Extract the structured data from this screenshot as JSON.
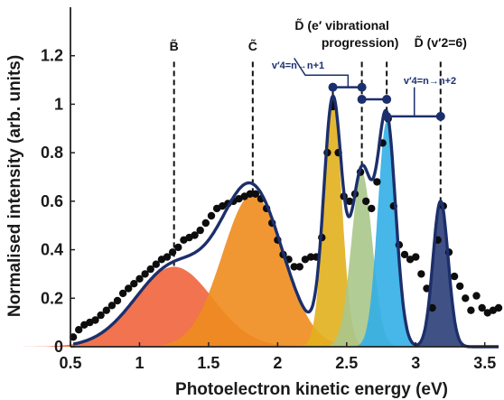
{
  "chart_data": {
    "type": "line",
    "xlabel": "Photoelectron kinetic energy (eV)",
    "ylabel": "Normalised intensity (arb. units)",
    "xlim": [
      0.5,
      3.6
    ],
    "ylim": [
      0,
      1.4
    ],
    "x_ticks": [
      0.5,
      1,
      1.5,
      2,
      2.5,
      3,
      3.5
    ],
    "x_tick_labels": [
      "0.5",
      "1",
      "1.5",
      "2",
      "2.5",
      "3",
      "3.5"
    ],
    "y_ticks": [
      0,
      0.2,
      0.4,
      0.6,
      0.8,
      1,
      1.2
    ],
    "y_tick_labels": [
      "0",
      "0.2",
      "0.4",
      "0.6",
      "0.8",
      "1",
      "1.2"
    ],
    "grid": false,
    "bands": [
      {
        "center": 1.25,
        "amplitude": 0.33,
        "width": 0.28,
        "color": "#f0643c"
      },
      {
        "center": 1.82,
        "amplitude": 0.63,
        "width": 0.22,
        "color": "#ee8c1e"
      },
      {
        "center": 2.4,
        "amplitude": 1.0,
        "width": 0.065,
        "color": "#e2b01e"
      },
      {
        "center": 2.61,
        "amplitude": 0.72,
        "width": 0.075,
        "color": "#a9c68a"
      },
      {
        "center": 2.79,
        "amplitude": 0.93,
        "width": 0.065,
        "color": "#33aee6"
      },
      {
        "center": 3.18,
        "amplitude": 0.6,
        "width": 0.055,
        "color": "#2b3f78"
      }
    ],
    "fit_color": "#1c2f6b",
    "data_points": {
      "x": [
        0.52,
        0.56,
        0.6,
        0.64,
        0.68,
        0.72,
        0.76,
        0.8,
        0.84,
        0.88,
        0.92,
        0.96,
        1.0,
        1.04,
        1.08,
        1.12,
        1.16,
        1.2,
        1.24,
        1.28,
        1.32,
        1.36,
        1.4,
        1.44,
        1.48,
        1.52,
        1.56,
        1.6,
        1.64,
        1.68,
        1.72,
        1.76,
        1.8,
        1.84,
        1.88,
        1.92,
        1.96,
        2.0,
        2.04,
        2.08,
        2.12,
        2.16,
        2.2,
        2.24,
        2.28,
        2.32,
        2.36,
        2.4,
        2.44,
        2.48,
        2.52,
        2.56,
        2.6,
        2.64,
        2.68,
        2.72,
        2.76,
        2.8,
        2.84,
        2.88,
        2.92,
        2.96,
        3.0,
        3.04,
        3.08,
        3.12,
        3.16,
        3.2,
        3.24,
        3.28,
        3.32,
        3.36,
        3.4,
        3.44,
        3.48,
        3.52,
        3.56,
        3.6
      ],
      "y": [
        0.04,
        0.07,
        0.09,
        0.1,
        0.11,
        0.13,
        0.15,
        0.17,
        0.19,
        0.22,
        0.24,
        0.26,
        0.28,
        0.3,
        0.32,
        0.34,
        0.36,
        0.37,
        0.39,
        0.41,
        0.44,
        0.45,
        0.46,
        0.48,
        0.51,
        0.54,
        0.57,
        0.58,
        0.59,
        0.6,
        0.61,
        0.62,
        0.63,
        0.63,
        0.61,
        0.57,
        0.51,
        0.44,
        0.38,
        0.36,
        0.33,
        0.33,
        0.36,
        0.37,
        0.37,
        0.45,
        0.8,
        0.99,
        0.8,
        0.62,
        0.6,
        0.63,
        0.72,
        0.6,
        0.57,
        0.68,
        0.84,
        0.94,
        0.58,
        0.42,
        0.38,
        0.36,
        0.37,
        0.3,
        0.24,
        0.16,
        0.44,
        0.58,
        0.39,
        0.29,
        0.25,
        0.2,
        0.15,
        0.21,
        0.16,
        0.14,
        0.15,
        0.16
      ]
    },
    "annotations": [
      {
        "label": "B̃",
        "x": 1.25
      },
      {
        "label": "C̃",
        "x": 1.82
      },
      {
        "label": "D̃ (e′ vibrational",
        "x": 2.61
      },
      {
        "label": "progression)",
        "x": 2.61
      },
      {
        "label": "D̃ (v′2=6)",
        "x": 3.18
      }
    ],
    "progression_labels": [
      {
        "label": "v′4=n→n+1"
      },
      {
        "label": "v′4=n→n+2"
      }
    ],
    "progression_links": [
      {
        "from": 2.4,
        "to": 2.61,
        "y": 1.07
      },
      {
        "from": 2.61,
        "to": 2.79,
        "y": 1.02
      },
      {
        "from": 2.79,
        "to": 3.18,
        "y": 0.95
      }
    ]
  }
}
